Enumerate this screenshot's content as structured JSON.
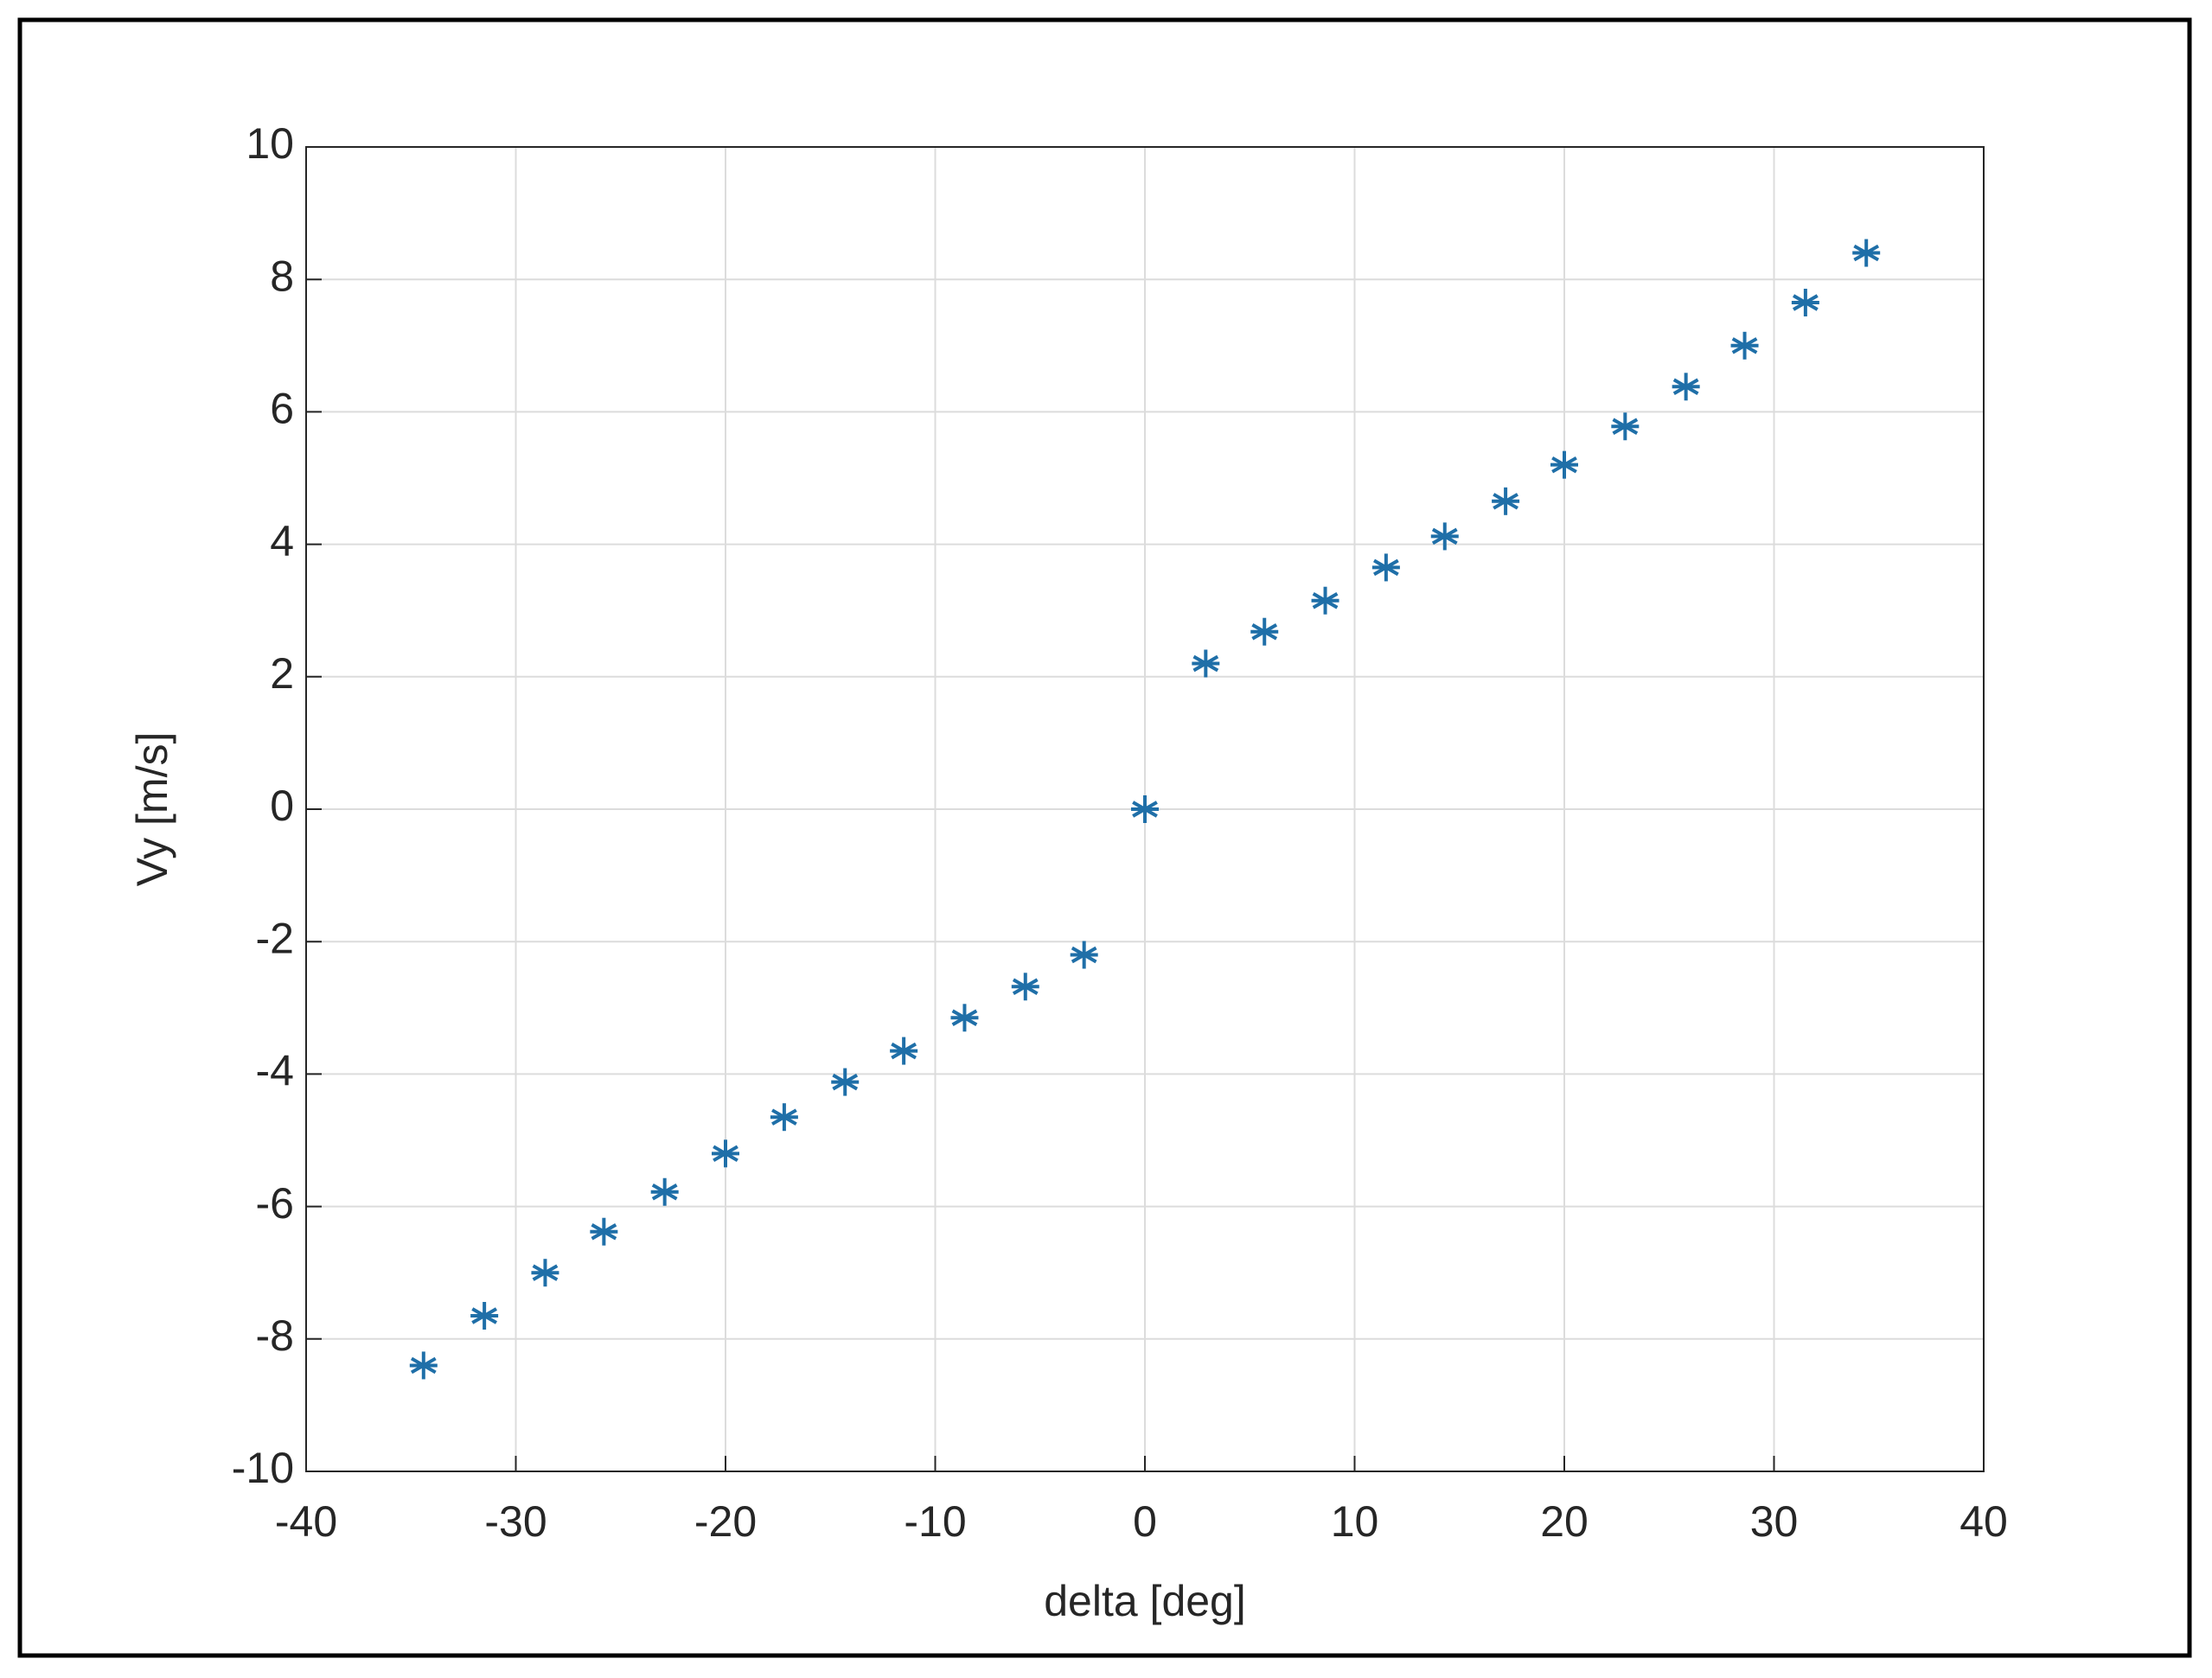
{
  "chart_data": {
    "type": "scatter",
    "xlabel": "delta [deg]",
    "ylabel": "Vy [m/s]",
    "x": [
      -34.4,
      -31.5,
      -28.6,
      -25.8,
      -22.9,
      -20,
      -17.2,
      -14.3,
      -11.5,
      -8.6,
      -5.7,
      -2.9,
      0,
      2.9,
      5.7,
      8.6,
      11.5,
      14.3,
      17.2,
      20,
      22.9,
      25.8,
      28.6,
      31.5,
      34.4
    ],
    "series": [
      {
        "color": "#1f6fa8",
        "marker": "asterisk",
        "values": [
          -8.4,
          -7.65,
          -7,
          -6.38,
          -5.78,
          -5.2,
          -4.65,
          -4.12,
          -3.65,
          -3.15,
          -2.68,
          -2.2,
          0,
          2.2,
          2.68,
          3.15,
          3.65,
          4.12,
          4.65,
          5.2,
          5.78,
          6.38,
          7,
          7.65,
          8.4
        ]
      }
    ],
    "xlim": [
      -40,
      40
    ],
    "xticks": [
      -40,
      -30,
      -20,
      -10,
      0,
      10,
      20,
      30,
      40
    ],
    "ylim": [
      -10,
      10
    ],
    "yticks": [
      -10,
      -8,
      -6,
      -4,
      -2,
      0,
      2,
      4,
      6,
      8,
      10
    ],
    "grid": true
  }
}
